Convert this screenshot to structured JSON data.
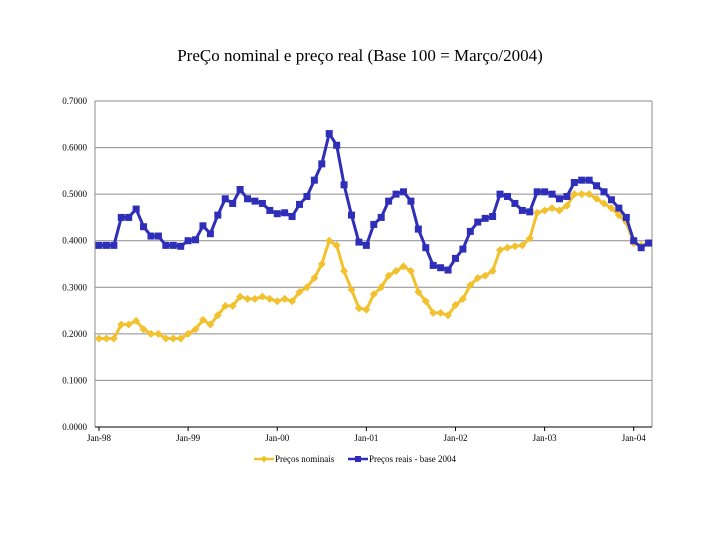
{
  "chart_data": {
    "type": "line",
    "title": "PreÇo nominal e preço real (Base 100 = Março/2004)",
    "xlabel": "",
    "ylabel": "",
    "ylim": [
      0,
      0.7
    ],
    "y_ticks": [
      "0.0000",
      "0.1000",
      "0.2000",
      "0.3000",
      "0.4000",
      "0.5000",
      "0.6000",
      "0.7000"
    ],
    "x_ticks": [
      {
        "label": "Jan-98",
        "index": 0
      },
      {
        "label": "Jan-99",
        "index": 12
      },
      {
        "label": "Jan-00",
        "index": 24
      },
      {
        "label": "Jan-01",
        "index": 36
      },
      {
        "label": "Jan-02",
        "index": 48
      },
      {
        "label": "Jan-03",
        "index": 60
      },
      {
        "label": "Jan-04",
        "index": 72
      }
    ],
    "grid": "horizontal",
    "legend_position": "bottom",
    "series": [
      {
        "name": "Preços nominais",
        "color": "#F2C12E",
        "marker": "diamond",
        "values": [
          0.19,
          0.19,
          0.19,
          0.22,
          0.22,
          0.228,
          0.21,
          0.2,
          0.2,
          0.19,
          0.19,
          0.19,
          0.2,
          0.21,
          0.23,
          0.22,
          0.24,
          0.26,
          0.26,
          0.28,
          0.275,
          0.275,
          0.28,
          0.275,
          0.27,
          0.275,
          0.27,
          0.29,
          0.3,
          0.32,
          0.35,
          0.4,
          0.39,
          0.335,
          0.295,
          0.255,
          0.252,
          0.285,
          0.3,
          0.325,
          0.335,
          0.345,
          0.335,
          0.29,
          0.27,
          0.245,
          0.245,
          0.24,
          0.262,
          0.275,
          0.305,
          0.32,
          0.325,
          0.335,
          0.38,
          0.385,
          0.388,
          0.39,
          0.405,
          0.46,
          0.465,
          0.47,
          0.465,
          0.475,
          0.5,
          0.5,
          0.5,
          0.49,
          0.48,
          0.47,
          0.455,
          0.44,
          0.395,
          0.39,
          0.395
        ]
      },
      {
        "name": "Preços reais - base 2004",
        "color": "#2E2EB8",
        "marker": "square",
        "values": [
          0.39,
          0.39,
          0.39,
          0.45,
          0.45,
          0.468,
          0.43,
          0.41,
          0.41,
          0.39,
          0.39,
          0.388,
          0.4,
          0.402,
          0.432,
          0.415,
          0.455,
          0.49,
          0.48,
          0.51,
          0.49,
          0.485,
          0.48,
          0.465,
          0.458,
          0.46,
          0.452,
          0.478,
          0.495,
          0.53,
          0.565,
          0.63,
          0.605,
          0.52,
          0.455,
          0.397,
          0.39,
          0.435,
          0.45,
          0.485,
          0.5,
          0.505,
          0.485,
          0.425,
          0.385,
          0.347,
          0.342,
          0.337,
          0.362,
          0.382,
          0.42,
          0.44,
          0.448,
          0.452,
          0.5,
          0.495,
          0.48,
          0.465,
          0.462,
          0.505,
          0.505,
          0.5,
          0.49,
          0.495,
          0.525,
          0.53,
          0.53,
          0.518,
          0.505,
          0.488,
          0.47,
          0.45,
          0.4,
          0.385,
          0.395
        ]
      }
    ]
  }
}
